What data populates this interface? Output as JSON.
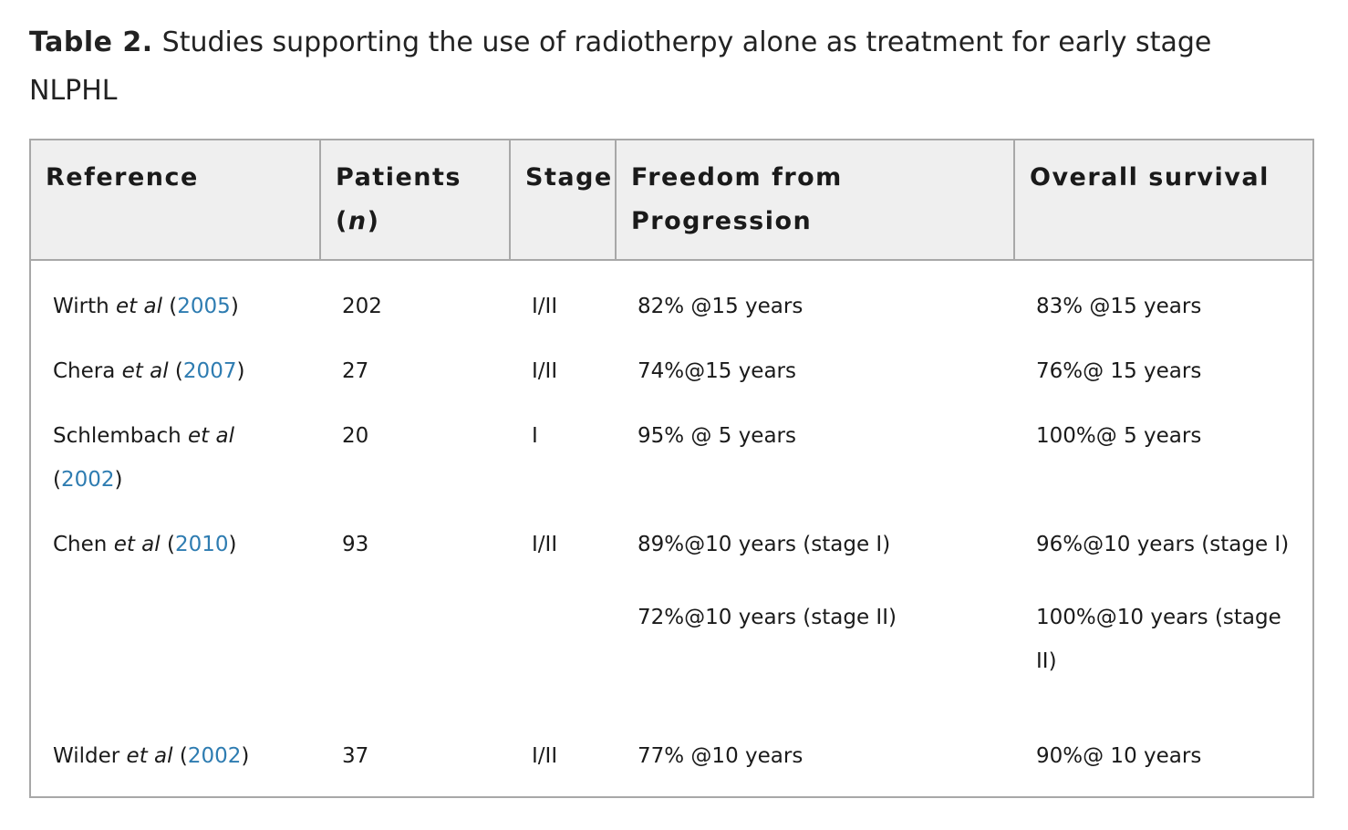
{
  "caption": {
    "label": "Table 2.",
    "text": "Studies supporting the use of radiotherpy alone as treatment for early stage NLPHL"
  },
  "headers": {
    "reference": "Reference",
    "patients": "Patients",
    "patients_paren_open": "(",
    "patients_n": "n",
    "patients_paren_close": ")",
    "stage": "Stage",
    "ffp": "Freedom from Progression",
    "os": "Overall survival"
  },
  "rows": [
    {
      "author": "Wirth ",
      "etal": "et al",
      "year": "2005",
      "patients": "202",
      "stage": "I/II",
      "ffp": "82% @15 years",
      "os": "83% @15 years"
    },
    {
      "author": "Chera ",
      "etal": "et al",
      "year": "2007",
      "patients": "27",
      "stage": "I/II",
      "ffp": "74%@15 years",
      "os": "76%@ 15 years"
    },
    {
      "author": "Schlembach ",
      "etal": "et al",
      "year": "2002",
      "patients": "20",
      "stage": "I",
      "ffp": "95% @ 5 years",
      "os": "100%@ 5 years"
    },
    {
      "author": "Chen ",
      "etal": "et al",
      "year": "2010",
      "patients": "93",
      "stage": "I/II",
      "ffp": "89%@10 years (stage I)",
      "os": "96%@10 years (stage I)",
      "ffp_2": "72%@10 years (stage II)",
      "os_2": "100%@10 years (stage II)"
    },
    {
      "author": "Wilder ",
      "etal": "et al",
      "year": "2002",
      "patients": "37",
      "stage": "I/II",
      "ffp": "77% @10 years",
      "os": "90%@ 10 years"
    }
  ],
  "colors": {
    "link": "#2e7cb1",
    "header_bg": "#efefef",
    "border": "#a8a8a8"
  }
}
